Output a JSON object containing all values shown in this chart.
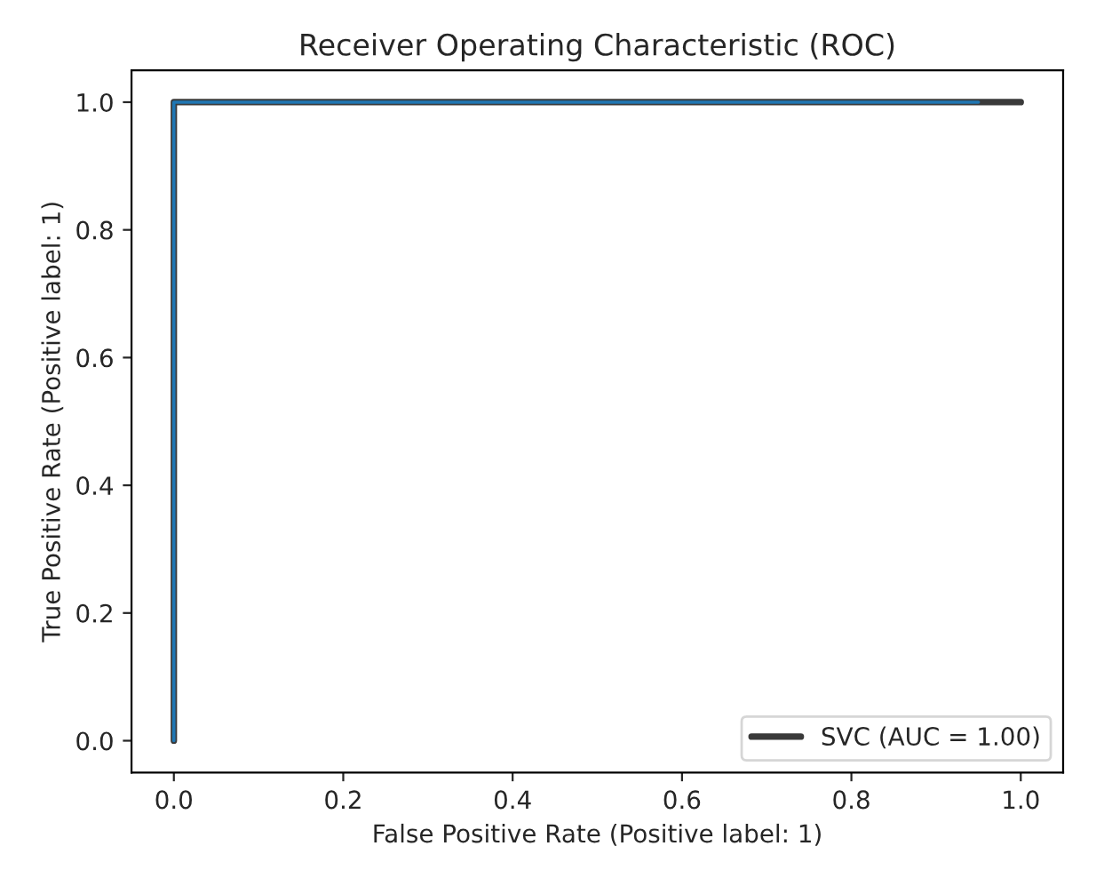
{
  "chart_data": {
    "type": "line",
    "title": "Receiver Operating Characteristic (ROC)",
    "xlabel": "False Positive Rate (Positive label: 1)",
    "ylabel": "True Positive Rate (Positive label: 1)",
    "series": [
      {
        "name": "SVC (AUC = 1.00)",
        "color": "#3a3a3a",
        "x": [
          0.0,
          0.0,
          1.0
        ],
        "values": [
          0.0,
          1.0,
          1.0
        ]
      },
      {
        "color": "#1f77b4",
        "x": [
          0.0,
          0.0,
          0.95
        ],
        "values": [
          0.0,
          1.0,
          1.0
        ]
      }
    ],
    "xlim": [
      -0.05,
      1.05
    ],
    "ylim": [
      -0.05,
      1.05
    ],
    "xticks": [
      {
        "value": 0,
        "label": "0.0"
      },
      0.2,
      0.4,
      0.6,
      0.8,
      {
        "value": 1,
        "label": "1.0"
      }
    ],
    "yticks": [
      {
        "value": 0,
        "label": "0.0"
      },
      0.2,
      0.4,
      0.6,
      0.8,
      {
        "value": 1,
        "label": "1.0"
      }
    ],
    "grid": false,
    "legend": "bottom right"
  }
}
